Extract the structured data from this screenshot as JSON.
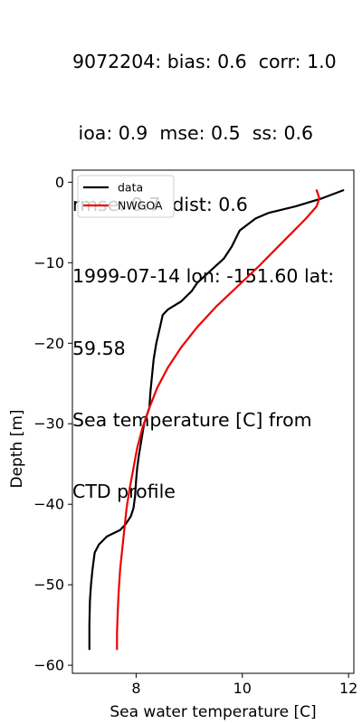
{
  "title_lines": [
    "9072204: bias: 0.6  corr: 1.0",
    " ioa: 0.9  mse: 0.5  ss: 0.6",
    "rmse: 0.7  dist: 0.6",
    "1999-07-14 lon: -151.60 lat:",
    "59.58",
    "Sea temperature [C] from",
    "CTD profile"
  ],
  "chart_data": {
    "type": "line",
    "xlabel": "Sea water temperature [C]",
    "ylabel": "Depth [m]",
    "xlim": [
      6.8,
      12.1
    ],
    "ylim": [
      -61,
      1.5
    ],
    "xticks": [
      8,
      10,
      12
    ],
    "yticks": [
      0,
      -10,
      -20,
      -30,
      -40,
      -50,
      -60
    ],
    "xtick_labels": [
      "8",
      "10",
      "12"
    ],
    "ytick_labels": [
      "0",
      "−10",
      "−20",
      "−30",
      "−40",
      "−50",
      "−60"
    ],
    "legend_position": "upper-left",
    "grid": false,
    "series": [
      {
        "name": "data",
        "color": "#000000",
        "points": [
          [
            11.9,
            -1.0
          ],
          [
            11.5,
            -2.0
          ],
          [
            11.0,
            -3.0
          ],
          [
            10.5,
            -3.8
          ],
          [
            10.25,
            -4.5
          ],
          [
            10.05,
            -5.5
          ],
          [
            9.95,
            -6.0
          ],
          [
            9.8,
            -8.0
          ],
          [
            9.65,
            -9.5
          ],
          [
            9.4,
            -11.0
          ],
          [
            9.15,
            -12.5
          ],
          [
            9.05,
            -13.5
          ],
          [
            8.85,
            -14.8
          ],
          [
            8.6,
            -15.8
          ],
          [
            8.5,
            -16.5
          ],
          [
            8.45,
            -18.0
          ],
          [
            8.38,
            -20.0
          ],
          [
            8.33,
            -22.0
          ],
          [
            8.3,
            -24.0
          ],
          [
            8.27,
            -26.0
          ],
          [
            8.25,
            -28.0
          ],
          [
            8.2,
            -29.0
          ],
          [
            8.15,
            -30.0
          ],
          [
            8.1,
            -32.0
          ],
          [
            8.05,
            -34.0
          ],
          [
            8.02,
            -35.5
          ],
          [
            8.0,
            -37.0
          ],
          [
            7.98,
            -39.0
          ],
          [
            7.95,
            -40.5
          ],
          [
            7.9,
            -41.5
          ],
          [
            7.8,
            -42.5
          ],
          [
            7.7,
            -43.2
          ],
          [
            7.45,
            -44.0
          ],
          [
            7.3,
            -45.0
          ],
          [
            7.22,
            -46.0
          ],
          [
            7.18,
            -48.0
          ],
          [
            7.15,
            -50.0
          ],
          [
            7.13,
            -52.0
          ],
          [
            7.12,
            -55.0
          ],
          [
            7.12,
            -58.0
          ]
        ]
      },
      {
        "name": "NWGOA",
        "color": "#ee0000",
        "points": [
          [
            11.4,
            -1.0
          ],
          [
            11.45,
            -2.0
          ],
          [
            11.4,
            -3.0
          ],
          [
            11.2,
            -4.5
          ],
          [
            10.9,
            -6.5
          ],
          [
            10.6,
            -8.5
          ],
          [
            10.3,
            -10.5
          ],
          [
            9.9,
            -13.0
          ],
          [
            9.5,
            -15.5
          ],
          [
            9.15,
            -18.0
          ],
          [
            8.85,
            -20.5
          ],
          [
            8.6,
            -23.0
          ],
          [
            8.4,
            -25.5
          ],
          [
            8.25,
            -28.0
          ],
          [
            8.12,
            -30.5
          ],
          [
            8.02,
            -33.0
          ],
          [
            7.95,
            -35.5
          ],
          [
            7.88,
            -38.0
          ],
          [
            7.82,
            -40.5
          ],
          [
            7.78,
            -43.0
          ],
          [
            7.74,
            -45.5
          ],
          [
            7.7,
            -48.0
          ],
          [
            7.67,
            -51.0
          ],
          [
            7.65,
            -54.0
          ],
          [
            7.64,
            -56.0
          ],
          [
            7.64,
            -58.0
          ]
        ]
      }
    ]
  }
}
